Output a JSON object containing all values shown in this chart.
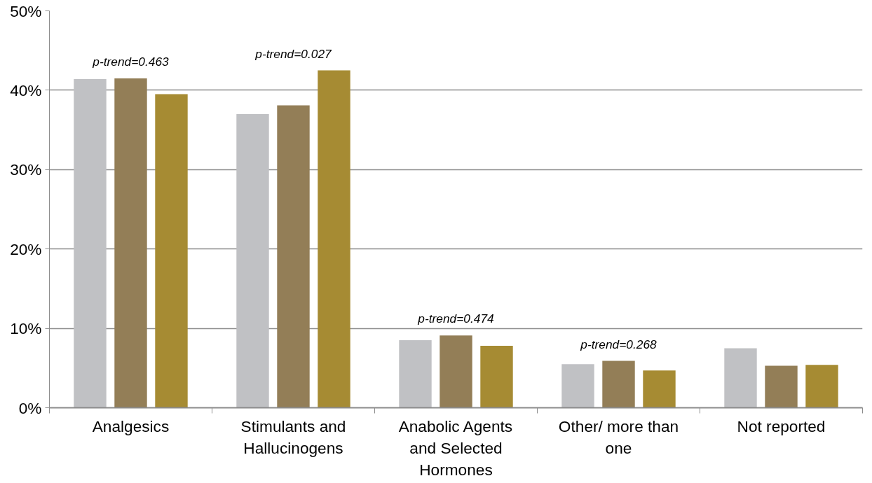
{
  "chart_data": {
    "type": "bar",
    "categories": [
      "Analgesics",
      "Stimulants and Hallucinogens",
      "Anabolic Agents and Selected Hormones",
      "Other/ more than one",
      "Not reported"
    ],
    "series": [
      {
        "color": "#c0c1c4",
        "values": [
          41.4,
          37.0,
          8.5,
          5.5,
          7.5
        ]
      },
      {
        "color": "#937e57",
        "values": [
          41.5,
          38.1,
          9.1,
          5.9,
          5.3
        ]
      },
      {
        "color": "#a68b33",
        "values": [
          39.5,
          42.5,
          7.8,
          4.7,
          5.4
        ]
      }
    ],
    "ylim": [
      0,
      50
    ],
    "yticks": [
      {
        "value": 0,
        "label": "0%"
      },
      {
        "value": 10,
        "label": "10%"
      },
      {
        "value": 20,
        "label": "20%"
      },
      {
        "value": 30,
        "label": "30%"
      },
      {
        "value": 40,
        "label": "40%"
      },
      {
        "value": 50,
        "label": "50%"
      }
    ],
    "grid": "y",
    "annotations": [
      "p-trend=0.463",
      "p-trend=0.027",
      "p-trend=0.474",
      "p-trend=0.268"
    ]
  }
}
